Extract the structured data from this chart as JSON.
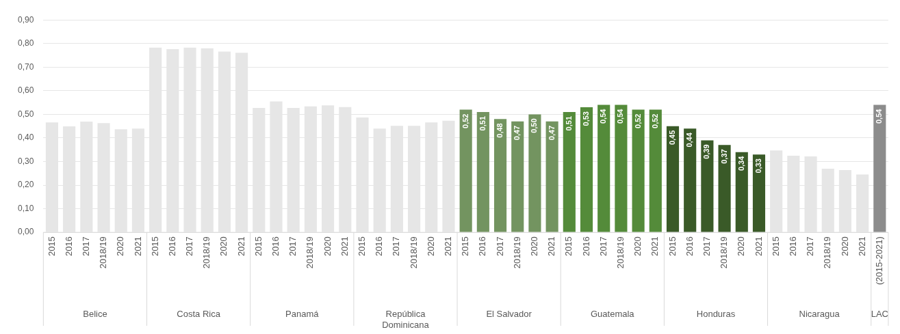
{
  "chart_data": {
    "type": "bar",
    "categories": [
      "2015",
      "2016",
      "2017",
      "2018/19",
      "2020",
      "2021",
      "2015",
      "2016",
      "2017",
      "2018/19",
      "2020",
      "2021",
      "2015",
      "2016",
      "2017",
      "2018/19",
      "2020",
      "2021",
      "2015",
      "2016",
      "2017",
      "2018/19",
      "2020",
      "2021",
      "2015",
      "2016",
      "2017",
      "2018/19",
      "2020",
      "2021",
      "2015",
      "2016",
      "2017",
      "2018/19",
      "2020",
      "2021",
      "2015",
      "2016",
      "2017",
      "2018/19",
      "2020",
      "2021",
      "2015",
      "2016",
      "2017",
      "2018/19",
      "2020",
      "2021",
      "(2015-2021)"
    ],
    "values": [
      0.466,
      0.449,
      0.469,
      0.463,
      0.437,
      0.44,
      0.783,
      0.776,
      0.783,
      0.78,
      0.766,
      0.761,
      0.527,
      0.555,
      0.527,
      0.534,
      0.538,
      0.531,
      0.487,
      0.44,
      0.451,
      0.451,
      0.466,
      0.473,
      0.52,
      0.51,
      0.48,
      0.47,
      0.5,
      0.47,
      0.51,
      0.53,
      0.54,
      0.54,
      0.52,
      0.52,
      0.45,
      0.44,
      0.39,
      0.37,
      0.34,
      0.33,
      0.347,
      0.325,
      0.322,
      0.27,
      0.264,
      0.245,
      0.54
    ],
    "colors": [
      "#e6e6e6",
      "#e6e6e6",
      "#e6e6e6",
      "#e6e6e6",
      "#e6e6e6",
      "#e6e6e6",
      "#e6e6e6",
      "#e6e6e6",
      "#e6e6e6",
      "#e6e6e6",
      "#e6e6e6",
      "#e6e6e6",
      "#e6e6e6",
      "#e6e6e6",
      "#e6e6e6",
      "#e6e6e6",
      "#e6e6e6",
      "#e6e6e6",
      "#e6e6e6",
      "#e6e6e6",
      "#e6e6e6",
      "#e6e6e6",
      "#e6e6e6",
      "#e6e6e6",
      "#739460",
      "#739460",
      "#739460",
      "#739460",
      "#739460",
      "#739460",
      "#548b3a",
      "#548b3a",
      "#548b3a",
      "#548b3a",
      "#548b3a",
      "#548b3a",
      "#3a5a28",
      "#3a5a28",
      "#3a5a28",
      "#3a5a28",
      "#3a5a28",
      "#3a5a28",
      "#e6e6e6",
      "#e6e6e6",
      "#e6e6e6",
      "#e6e6e6",
      "#e6e6e6",
      "#e6e6e6",
      "#8c8c8c"
    ],
    "value_labels": [
      null,
      null,
      null,
      null,
      null,
      null,
      null,
      null,
      null,
      null,
      null,
      null,
      null,
      null,
      null,
      null,
      null,
      null,
      null,
      null,
      null,
      null,
      null,
      null,
      "0,52",
      "0,51",
      "0,48",
      "0,47",
      "0,50",
      "0,47",
      "0,51",
      "0,53",
      "0,54",
      "0,54",
      "0,52",
      "0,52",
      "0,45",
      "0,44",
      "0,39",
      "0,37",
      "0,34",
      "0,33",
      null,
      null,
      null,
      null,
      null,
      null,
      "0,54"
    ],
    "ylim": [
      0,
      0.9
    ],
    "yticks": [
      {
        "value": 0,
        "label": "0,00"
      },
      {
        "value": 0.1,
        "label": "0,10"
      },
      {
        "value": 0.2,
        "label": "0,20"
      },
      {
        "value": 0.3,
        "label": "0,30"
      },
      {
        "value": 0.4,
        "label": "0,40"
      },
      {
        "value": 0.5,
        "label": "0,50"
      },
      {
        "value": 0.6,
        "label": "0,60"
      },
      {
        "value": 0.7,
        "label": "0,70"
      },
      {
        "value": 0.8,
        "label": "0,80"
      },
      {
        "value": 0.9,
        "label": "0,90"
      }
    ],
    "grid": "y",
    "legend": false,
    "annotations": [
      "Belice",
      "Costa Rica",
      "Panamá",
      "República Dominicana",
      "El Salvador",
      "Guatemala",
      "Honduras",
      "Nicaragua",
      "LAC"
    ]
  }
}
